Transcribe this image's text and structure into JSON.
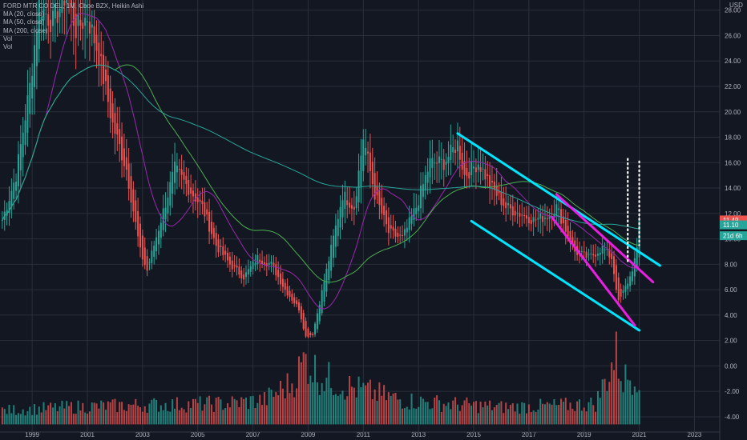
{
  "header": {
    "symbol_title": "FORD MTR CO DEL, 1M, Cboe BZX, Heikin Ashi",
    "indicators": [
      "MA (20, close)",
      "MA (50, close)",
      "MA (200, close)",
      "Vol",
      "Vol"
    ],
    "currency": "USD"
  },
  "price_badges": [
    {
      "text": "11.49",
      "value": 11.49,
      "color": "#ef5350"
    },
    {
      "text": "11.10",
      "value": 11.1,
      "color": "#26a69a"
    },
    {
      "text": "21d 6h",
      "value": 10.25,
      "color": "#26a69a"
    }
  ],
  "colors": {
    "bull": "#26a69a",
    "bear": "#ef5350",
    "ma20": "#9c27b0",
    "ma50": "#4caf50",
    "ma200": "#26a69a",
    "channel": "#00e5ff",
    "wedge": "#e91ee0",
    "grid": "#2a2e39",
    "background": "#131722"
  },
  "chart_data": {
    "type": "candlestick",
    "chart_style": "Heikin Ashi",
    "interval": "1M",
    "ylim": [
      -5.2,
      28.8
    ],
    "xlim": [
      "1997-11",
      "2023-12"
    ],
    "y_ticks": [
      "28.00",
      "26.00",
      "24.00",
      "22.00",
      "20.00",
      "18.00",
      "16.00",
      "14.00",
      "12.00",
      "10.00",
      "8.00",
      "6.00",
      "4.00",
      "2.00",
      "0.00",
      "-2.00",
      "-4.00"
    ],
    "x_ticks": [
      "1999",
      "2001",
      "2003",
      "2005",
      "2007",
      "2009",
      "2011",
      "2013",
      "2015",
      "2017",
      "2019",
      "2021",
      "2023"
    ],
    "price_keyframes": [
      [
        "1997-12",
        11.5
      ],
      [
        "1998-06",
        15.0
      ],
      [
        "1998-12",
        22.0
      ],
      [
        "1999-04",
        28.5
      ],
      [
        "1999-10",
        27.0
      ],
      [
        "2000-04",
        29.5
      ],
      [
        "2000-08",
        26.5
      ],
      [
        "2001-01",
        27.5
      ],
      [
        "2001-06",
        24.5
      ],
      [
        "2001-12",
        19.0
      ],
      [
        "2002-06",
        15.5
      ],
      [
        "2002-12",
        9.0
      ],
      [
        "2003-03",
        7.5
      ],
      [
        "2003-09",
        11.5
      ],
      [
        "2004-03",
        15.5
      ],
      [
        "2004-09",
        14.0
      ],
      [
        "2005-03",
        12.5
      ],
      [
        "2005-09",
        9.5
      ],
      [
        "2006-03",
        8.0
      ],
      [
        "2006-09",
        7.0
      ],
      [
        "2007-03",
        8.5
      ],
      [
        "2007-09",
        8.0
      ],
      [
        "2008-03",
        6.0
      ],
      [
        "2008-09",
        4.5
      ],
      [
        "2008-12",
        2.3
      ],
      [
        "2009-03",
        2.5
      ],
      [
        "2009-09",
        7.5
      ],
      [
        "2010-04",
        13.5
      ],
      [
        "2010-09",
        12.5
      ],
      [
        "2011-01",
        18.0
      ],
      [
        "2011-06",
        13.5
      ],
      [
        "2011-12",
        10.5
      ],
      [
        "2012-06",
        10.0
      ],
      [
        "2012-12",
        12.5
      ],
      [
        "2013-06",
        16.0
      ],
      [
        "2013-12",
        16.0
      ],
      [
        "2014-06",
        17.5
      ],
      [
        "2014-09",
        15.0
      ],
      [
        "2015-03",
        16.0
      ],
      [
        "2015-09",
        14.0
      ],
      [
        "2016-03",
        12.5
      ],
      [
        "2016-09",
        12.0
      ],
      [
        "2017-03",
        11.5
      ],
      [
        "2017-09",
        11.8
      ],
      [
        "2018-01",
        12.5
      ],
      [
        "2018-09",
        9.0
      ],
      [
        "2019-03",
        8.5
      ],
      [
        "2019-09",
        9.3
      ],
      [
        "2020-01",
        8.5
      ],
      [
        "2020-04",
        5.0
      ],
      [
        "2020-09",
        7.0
      ],
      [
        "2020-12",
        9.0
      ],
      [
        "2021-01",
        11.5
      ]
    ],
    "volume_keyframes": [
      [
        "1997-12",
        0.2
      ],
      [
        "2000-06",
        0.25
      ],
      [
        "2003-01",
        0.28
      ],
      [
        "2006-01",
        0.3
      ],
      [
        "2007-06",
        0.35
      ],
      [
        "2008-06",
        0.6
      ],
      [
        "2008-12",
        0.95
      ],
      [
        "2009-06",
        0.7
      ],
      [
        "2010-06",
        0.55
      ],
      [
        "2011-06",
        0.45
      ],
      [
        "2012-06",
        0.35
      ],
      [
        "2014-01",
        0.3
      ],
      [
        "2016-01",
        0.25
      ],
      [
        "2018-01",
        0.27
      ],
      [
        "2019-06",
        0.3
      ],
      [
        "2020-03",
        1.0
      ],
      [
        "2020-06",
        0.65
      ],
      [
        "2020-12",
        0.75
      ],
      [
        "2021-01",
        0.8
      ]
    ],
    "moving_averages": [
      {
        "name": "MA (20, close)",
        "period": 20,
        "color": "#9c27b0"
      },
      {
        "name": "MA (50, close)",
        "period": 50,
        "color": "#4caf50"
      },
      {
        "name": "MA (200, close)",
        "period": 200,
        "color": "#26a69a"
      }
    ],
    "trendlines": [
      {
        "name": "channel-upper",
        "color": "#00e5ff",
        "from": [
          "2014-06",
          18.3
        ],
        "to": [
          "2021-10",
          7.9
        ]
      },
      {
        "name": "channel-lower",
        "color": "#00e5ff",
        "from": [
          "2014-12",
          11.4
        ],
        "to": [
          "2021-01",
          2.8
        ]
      },
      {
        "name": "wedge-upper",
        "color": "#e91ee0",
        "from": [
          "2018-01",
          13.5
        ],
        "to": [
          "2021-07",
          6.6
        ]
      },
      {
        "name": "wedge-lower",
        "color": "#e91ee0",
        "from": [
          "2017-11",
          11.7
        ],
        "to": [
          "2020-11",
          3.2
        ]
      }
    ],
    "vertical_markers": [
      {
        "date": "2020-08",
        "from": 8.0,
        "to": 16.3,
        "color": "#ffffff",
        "style": "dotted"
      },
      {
        "date": "2021-01",
        "from": 9.5,
        "to": 16.1,
        "color": "#ffffff",
        "style": "dotted"
      }
    ]
  }
}
